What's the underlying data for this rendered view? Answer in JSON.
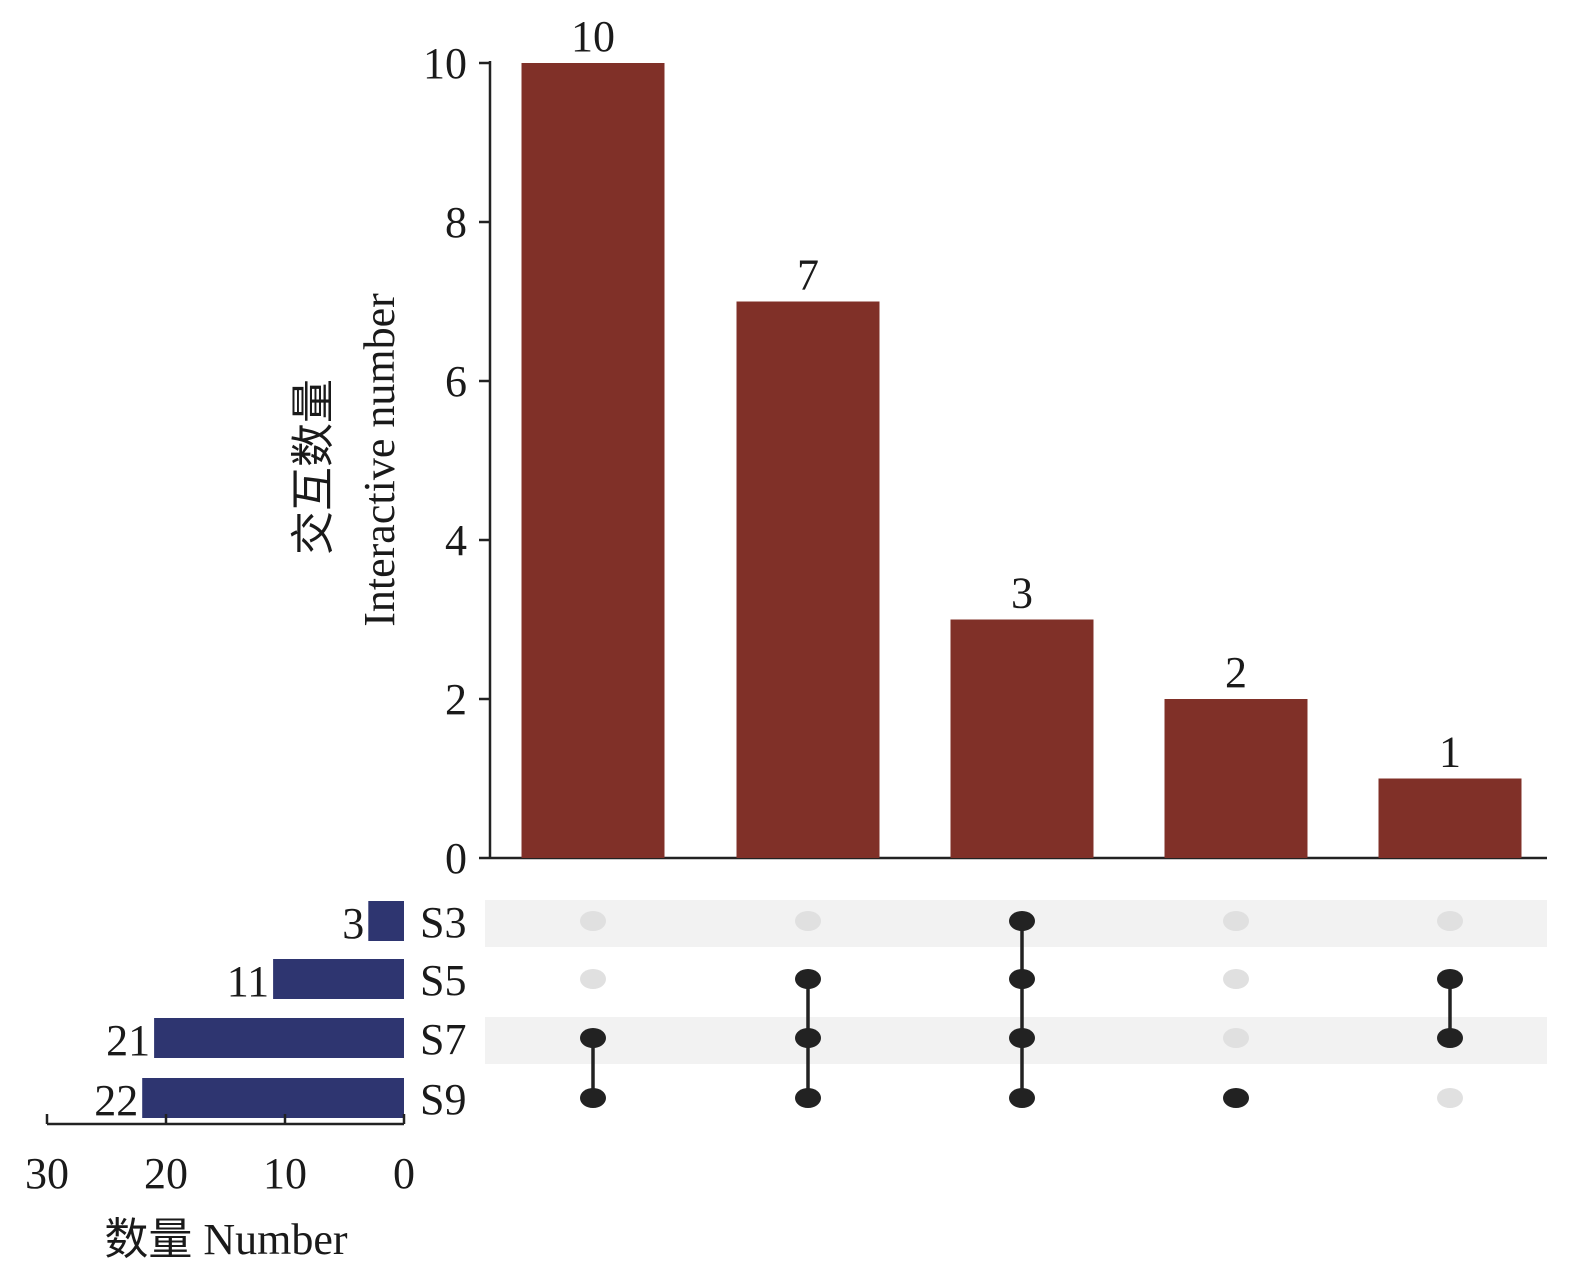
{
  "chart_data": {
    "type": "upset",
    "ylabel_cn": "交互数量",
    "ylabel_en": "Interactive number",
    "ylim": [
      0,
      10
    ],
    "yticks": [
      0,
      2,
      4,
      6,
      8,
      10
    ],
    "intersections": [
      {
        "value": 10,
        "label": "10",
        "sets": [
          "S7",
          "S9"
        ]
      },
      {
        "value": 7,
        "label": "7",
        "sets": [
          "S5",
          "S7",
          "S9"
        ]
      },
      {
        "value": 3,
        "label": "3",
        "sets": [
          "S3",
          "S5",
          "S7",
          "S9"
        ]
      },
      {
        "value": 2,
        "label": "2",
        "sets": [
          "S9"
        ]
      },
      {
        "value": 1,
        "label": "1",
        "sets": [
          "S5",
          "S7"
        ]
      }
    ],
    "sets": [
      {
        "name": "S3",
        "size": 3,
        "label": "3"
      },
      {
        "name": "S5",
        "size": 11,
        "label": "11"
      },
      {
        "name": "S7",
        "size": 21,
        "label": "21"
      },
      {
        "name": "S9",
        "size": 22,
        "label": "22"
      }
    ],
    "set_size_xlabel": "数量 Number",
    "set_size_xlim": [
      0,
      30
    ],
    "set_size_xticks": [
      30,
      20,
      10,
      0
    ],
    "colors": {
      "intersection_bar": "#803028",
      "set_bar": "#2e3570",
      "dot_active": "#222222",
      "dot_inactive": "#e0e0e0",
      "row_shade": "#f2f2f2"
    }
  }
}
